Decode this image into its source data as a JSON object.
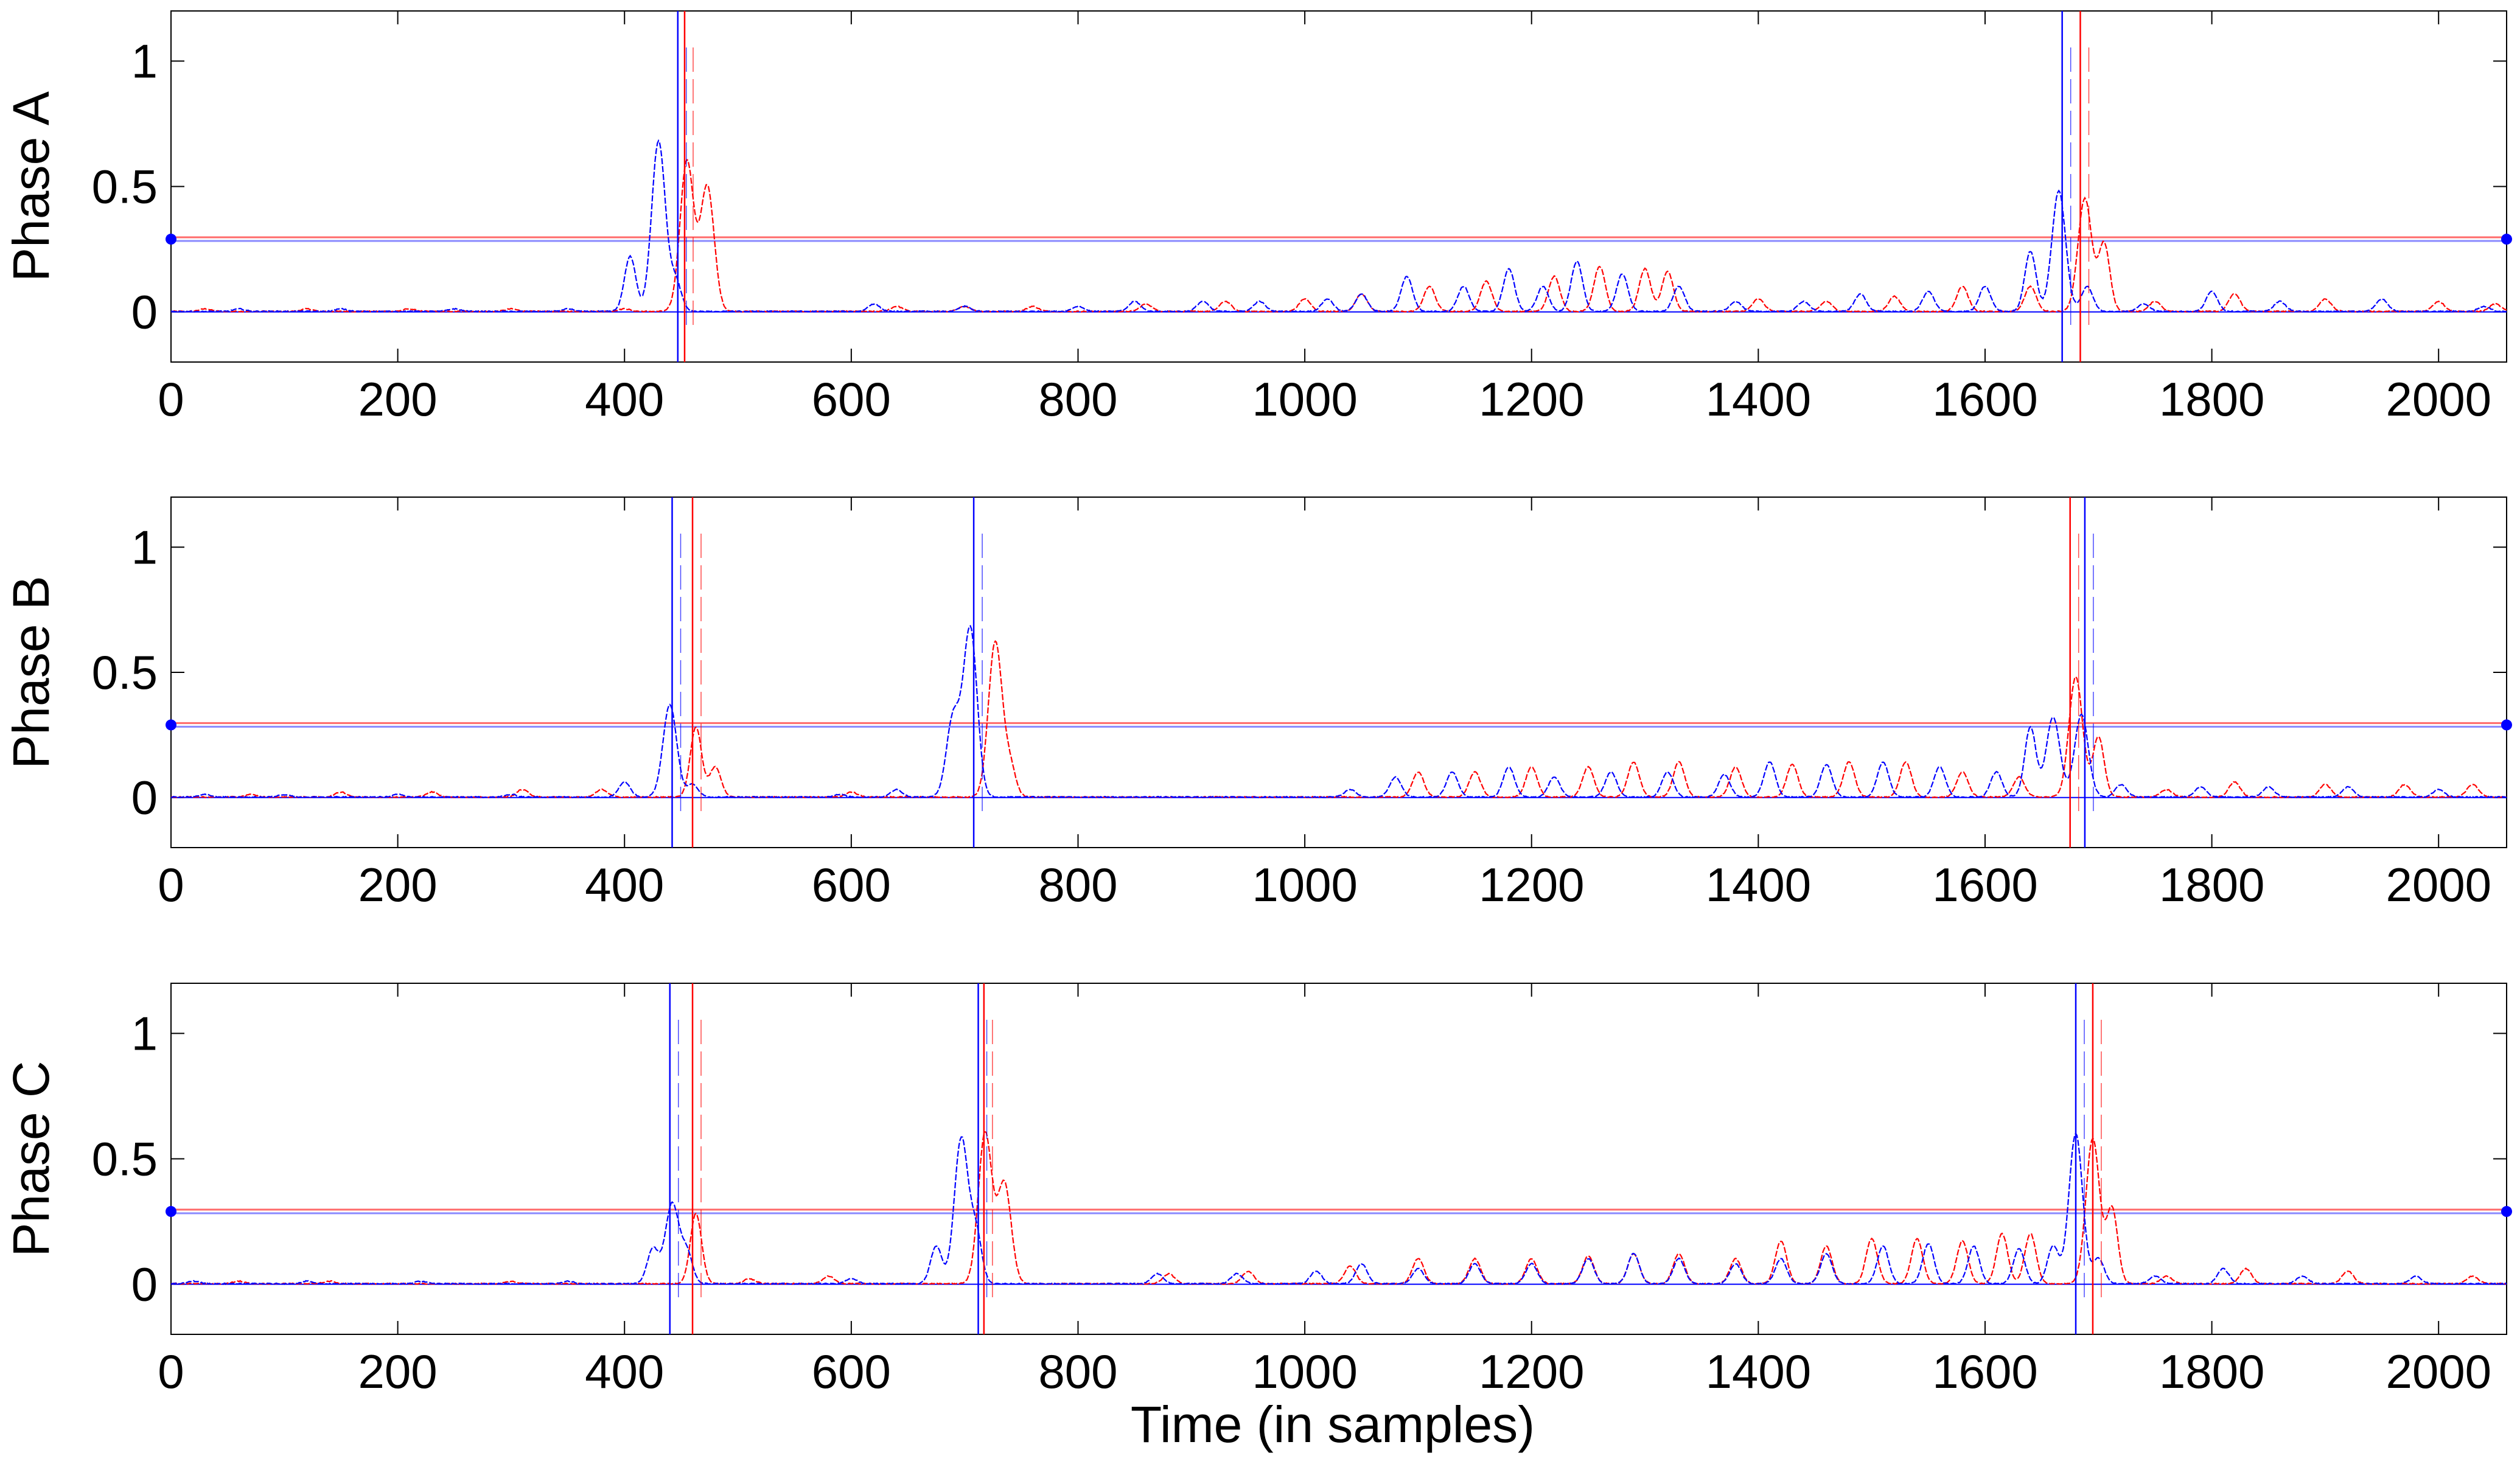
{
  "colors": {
    "red": "#ff0000",
    "blue": "#0000ff",
    "axis": "#000000",
    "threshold_red": "#ff6a6a",
    "threshold_blue": "#8a8aff"
  },
  "chart_data": [
    {
      "type": "line",
      "ylabel": "Phase A",
      "xlim": [
        0,
        2060
      ],
      "ylim": [
        -0.2,
        1.2
      ],
      "xticks": [
        0,
        200,
        400,
        600,
        800,
        1000,
        1200,
        1400,
        1600,
        1800,
        2000
      ],
      "yticks": [
        0,
        0.5,
        1
      ],
      "threshold": 0.29,
      "series": [
        {
          "color": "red",
          "peaks": [
            [
              30,
              0.01
            ],
            [
              120,
              0.01
            ],
            [
              210,
              0.01
            ],
            [
              300,
              0.01
            ],
            [
              400,
              0.01
            ],
            [
              455,
              0.6
            ],
            [
              473,
              0.5
            ],
            [
              640,
              0.02
            ],
            [
              700,
              0.02
            ],
            [
              760,
              0.02
            ],
            [
              860,
              0.03
            ],
            [
              930,
              0.04
            ],
            [
              1000,
              0.05
            ],
            [
              1050,
              0.07
            ],
            [
              1110,
              0.1
            ],
            [
              1160,
              0.12
            ],
            [
              1220,
              0.14
            ],
            [
              1260,
              0.18
            ],
            [
              1300,
              0.17
            ],
            [
              1320,
              0.16
            ],
            [
              1400,
              0.05
            ],
            [
              1460,
              0.04
            ],
            [
              1520,
              0.06
            ],
            [
              1580,
              0.1
            ],
            [
              1640,
              0.1
            ],
            [
              1688,
              0.45
            ],
            [
              1705,
              0.27
            ],
            [
              1750,
              0.04
            ],
            [
              1820,
              0.07
            ],
            [
              1900,
              0.05
            ],
            [
              2000,
              0.04
            ],
            [
              2050,
              0.03
            ]
          ]
        },
        {
          "color": "blue",
          "peaks": [
            [
              60,
              0.01
            ],
            [
              150,
              0.01
            ],
            [
              250,
              0.01
            ],
            [
              350,
              0.01
            ],
            [
              405,
              0.22
            ],
            [
              430,
              0.68
            ],
            [
              445,
              0.12
            ],
            [
              620,
              0.03
            ],
            [
              700,
              0.02
            ],
            [
              800,
              0.02
            ],
            [
              850,
              0.04
            ],
            [
              910,
              0.04
            ],
            [
              960,
              0.04
            ],
            [
              1020,
              0.05
            ],
            [
              1050,
              0.07
            ],
            [
              1090,
              0.14
            ],
            [
              1140,
              0.1
            ],
            [
              1180,
              0.17
            ],
            [
              1210,
              0.1
            ],
            [
              1240,
              0.2
            ],
            [
              1280,
              0.15
            ],
            [
              1330,
              0.1
            ],
            [
              1380,
              0.04
            ],
            [
              1440,
              0.04
            ],
            [
              1490,
              0.07
            ],
            [
              1550,
              0.08
            ],
            [
              1600,
              0.1
            ],
            [
              1640,
              0.24
            ],
            [
              1665,
              0.48
            ],
            [
              1690,
              0.1
            ],
            [
              1740,
              0.03
            ],
            [
              1800,
              0.08
            ],
            [
              1860,
              0.04
            ],
            [
              1950,
              0.05
            ],
            [
              2040,
              0.02
            ]
          ]
        }
      ],
      "markers": [
        {
          "color": "red",
          "x": [
            453,
            1684
          ]
        },
        {
          "color": "blue",
          "x": [
            447,
            1668
          ]
        }
      ]
    },
    {
      "type": "line",
      "ylabel": "Phase B",
      "xlim": [
        0,
        2060
      ],
      "ylim": [
        -0.2,
        1.2
      ],
      "xticks": [
        0,
        200,
        400,
        600,
        800,
        1000,
        1200,
        1400,
        1600,
        1800,
        2000
      ],
      "yticks": [
        0,
        0.5,
        1
      ],
      "threshold": 0.29,
      "series": [
        {
          "color": "red",
          "peaks": [
            [
              70,
              0.01
            ],
            [
              150,
              0.02
            ],
            [
              230,
              0.02
            ],
            [
              310,
              0.03
            ],
            [
              380,
              0.03
            ],
            [
              463,
              0.28
            ],
            [
              480,
              0.12
            ],
            [
              600,
              0.02
            ],
            [
              727,
              0.62
            ],
            [
              740,
              0.12
            ],
            [
              1100,
              0.1
            ],
            [
              1150,
              0.1
            ],
            [
              1200,
              0.12
            ],
            [
              1250,
              0.12
            ],
            [
              1290,
              0.14
            ],
            [
              1330,
              0.14
            ],
            [
              1380,
              0.12
            ],
            [
              1430,
              0.13
            ],
            [
              1480,
              0.14
            ],
            [
              1530,
              0.14
            ],
            [
              1580,
              0.1
            ],
            [
              1630,
              0.08
            ],
            [
              1680,
              0.48
            ],
            [
              1700,
              0.24
            ],
            [
              1760,
              0.03
            ],
            [
              1820,
              0.06
            ],
            [
              1900,
              0.05
            ],
            [
              1970,
              0.05
            ],
            [
              2030,
              0.05
            ]
          ]
        },
        {
          "color": "blue",
          "peaks": [
            [
              30,
              0.01
            ],
            [
              100,
              0.01
            ],
            [
              200,
              0.01
            ],
            [
              300,
              0.01
            ],
            [
              400,
              0.06
            ],
            [
              440,
              0.37
            ],
            [
              460,
              0.05
            ],
            [
              590,
              0.01
            ],
            [
              640,
              0.03
            ],
            [
              690,
              0.32
            ],
            [
              705,
              0.67
            ],
            [
              1040,
              0.03
            ],
            [
              1080,
              0.08
            ],
            [
              1130,
              0.1
            ],
            [
              1180,
              0.12
            ],
            [
              1220,
              0.08
            ],
            [
              1270,
              0.1
            ],
            [
              1320,
              0.1
            ],
            [
              1370,
              0.09
            ],
            [
              1410,
              0.14
            ],
            [
              1460,
              0.13
            ],
            [
              1510,
              0.14
            ],
            [
              1560,
              0.12
            ],
            [
              1610,
              0.1
            ],
            [
              1640,
              0.28
            ],
            [
              1660,
              0.32
            ],
            [
              1685,
              0.33
            ],
            [
              1720,
              0.05
            ],
            [
              1790,
              0.04
            ],
            [
              1850,
              0.04
            ],
            [
              1920,
              0.04
            ],
            [
              2000,
              0.03
            ]
          ]
        }
      ],
      "markers": [
        {
          "color": "red",
          "x": [
            460,
            1675
          ]
        },
        {
          "color": "blue",
          "x": [
            442,
            708,
            1688
          ]
        }
      ]
    },
    {
      "type": "line",
      "ylabel": "Phase C",
      "xlabel": "Time (in samples)",
      "xlim": [
        0,
        2060
      ],
      "ylim": [
        -0.2,
        1.2
      ],
      "xticks": [
        0,
        200,
        400,
        600,
        800,
        1000,
        1200,
        1400,
        1600,
        1800,
        2000
      ],
      "yticks": [
        0,
        0.5,
        1
      ],
      "threshold": 0.29,
      "series": [
        {
          "color": "red",
          "peaks": [
            [
              60,
              0.01
            ],
            [
              140,
              0.01
            ],
            [
              300,
              0.01
            ],
            [
              463,
              0.28
            ],
            [
              510,
              0.02
            ],
            [
              580,
              0.03
            ],
            [
              718,
              0.6
            ],
            [
              735,
              0.4
            ],
            [
              880,
              0.04
            ],
            [
              950,
              0.05
            ],
            [
              1040,
              0.07
            ],
            [
              1100,
              0.1
            ],
            [
              1150,
              0.1
            ],
            [
              1200,
              0.1
            ],
            [
              1250,
              0.11
            ],
            [
              1290,
              0.12
            ],
            [
              1330,
              0.12
            ],
            [
              1380,
              0.1
            ],
            [
              1420,
              0.17
            ],
            [
              1460,
              0.15
            ],
            [
              1500,
              0.18
            ],
            [
              1540,
              0.18
            ],
            [
              1580,
              0.17
            ],
            [
              1615,
              0.2
            ],
            [
              1640,
              0.2
            ],
            [
              1695,
              0.58
            ],
            [
              1712,
              0.3
            ],
            [
              1760,
              0.03
            ],
            [
              1830,
              0.06
            ],
            [
              1920,
              0.05
            ],
            [
              2030,
              0.03
            ]
          ]
        },
        {
          "color": "blue",
          "peaks": [
            [
              20,
              0.01
            ],
            [
              120,
              0.01
            ],
            [
              220,
              0.01
            ],
            [
              350,
              0.01
            ],
            [
              425,
              0.14
            ],
            [
              442,
              0.32
            ],
            [
              455,
              0.12
            ],
            [
              600,
              0.02
            ],
            [
              675,
              0.15
            ],
            [
              697,
              0.58
            ],
            [
              710,
              0.2
            ],
            [
              870,
              0.04
            ],
            [
              940,
              0.04
            ],
            [
              1010,
              0.05
            ],
            [
              1050,
              0.08
            ],
            [
              1100,
              0.06
            ],
            [
              1150,
              0.08
            ],
            [
              1200,
              0.08
            ],
            [
              1250,
              0.1
            ],
            [
              1290,
              0.12
            ],
            [
              1330,
              0.1
            ],
            [
              1380,
              0.08
            ],
            [
              1420,
              0.1
            ],
            [
              1460,
              0.12
            ],
            [
              1510,
              0.15
            ],
            [
              1550,
              0.16
            ],
            [
              1590,
              0.15
            ],
            [
              1630,
              0.14
            ],
            [
              1660,
              0.15
            ],
            [
              1680,
              0.6
            ],
            [
              1700,
              0.1
            ],
            [
              1750,
              0.03
            ],
            [
              1810,
              0.06
            ],
            [
              1880,
              0.03
            ],
            [
              1980,
              0.03
            ]
          ]
        }
      ],
      "markers": [
        {
          "color": "red",
          "x": [
            460,
            717,
            1695
          ]
        },
        {
          "color": "blue",
          "x": [
            440,
            712,
            1680
          ]
        }
      ]
    }
  ]
}
